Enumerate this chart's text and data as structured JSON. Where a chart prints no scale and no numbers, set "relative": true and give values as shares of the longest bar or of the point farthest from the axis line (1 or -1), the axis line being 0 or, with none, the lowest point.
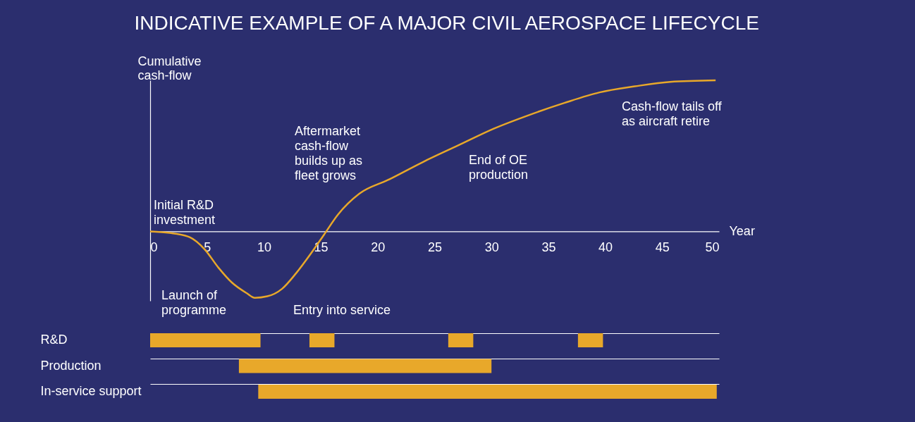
{
  "chart_data": [
    {
      "type": "line",
      "title": "INDICATIVE EXAMPLE OF A MAJOR CIVIL AEROSPACE LIFECYCLE",
      "xlabel": "Year",
      "ylabel": "Cumulative\ncash-flow",
      "relative": true,
      "x": [
        0,
        1.7,
        3.5,
        4.8,
        6.0,
        7.2,
        8.5,
        9.2,
        10.3,
        11.6,
        12.8,
        14.1,
        15.3,
        16.5,
        18.4,
        20.9,
        24.0,
        27.1,
        30.2,
        33.3,
        36.4,
        39.5,
        42.6,
        45.7,
        49.7
      ],
      "series": [
        {
          "color": "#e8a82a",
          "values": [
            0,
            -0.01,
            -0.04,
            -0.12,
            -0.24,
            -0.34,
            -0.41,
            -0.44,
            -0.43,
            -0.38,
            -0.28,
            -0.15,
            -0.02,
            0.11,
            0.25,
            0.34,
            0.46,
            0.57,
            0.68,
            0.77,
            0.85,
            0.92,
            0.96,
            0.99,
            1.0
          ]
        }
      ],
      "xlim": [
        0,
        50
      ],
      "xticks": [
        0,
        5,
        10,
        15,
        20,
        25,
        30,
        35,
        40,
        45,
        50
      ],
      "annotations": [
        "Initial R&D\ninvestment",
        "Launch of\nprogramme",
        "Aftermarket\ncash-flow\nbuilds up as\nfleet grows",
        "Entry into service",
        "End of OE\nproduction",
        "Cash-flow tails off\nas aircraft retire"
      ]
    },
    {
      "type": "bar",
      "orientation": "horizontal",
      "categories": [
        "R&D",
        "Production",
        "In-service support"
      ],
      "xlim": [
        0,
        50
      ],
      "tick_labels": "y",
      "grid": "y",
      "series": [
        {
          "color": "#e8a82a",
          "base": [
            0,
            7.8,
            9.5
          ],
          "values": [
            9.7,
            22.2,
            40.3
          ]
        },
        {
          "color": "#e8a82a",
          "base": [
            14.0,
            null,
            null
          ],
          "values": [
            2.2,
            null,
            null
          ]
        },
        {
          "color": "#e8a82a",
          "base": [
            26.2,
            null,
            null
          ],
          "values": [
            2.2,
            null,
            null
          ]
        },
        {
          "color": "#e8a82a",
          "base": [
            37.6,
            null,
            null
          ],
          "values": [
            2.2,
            null,
            null
          ]
        }
      ]
    }
  ]
}
